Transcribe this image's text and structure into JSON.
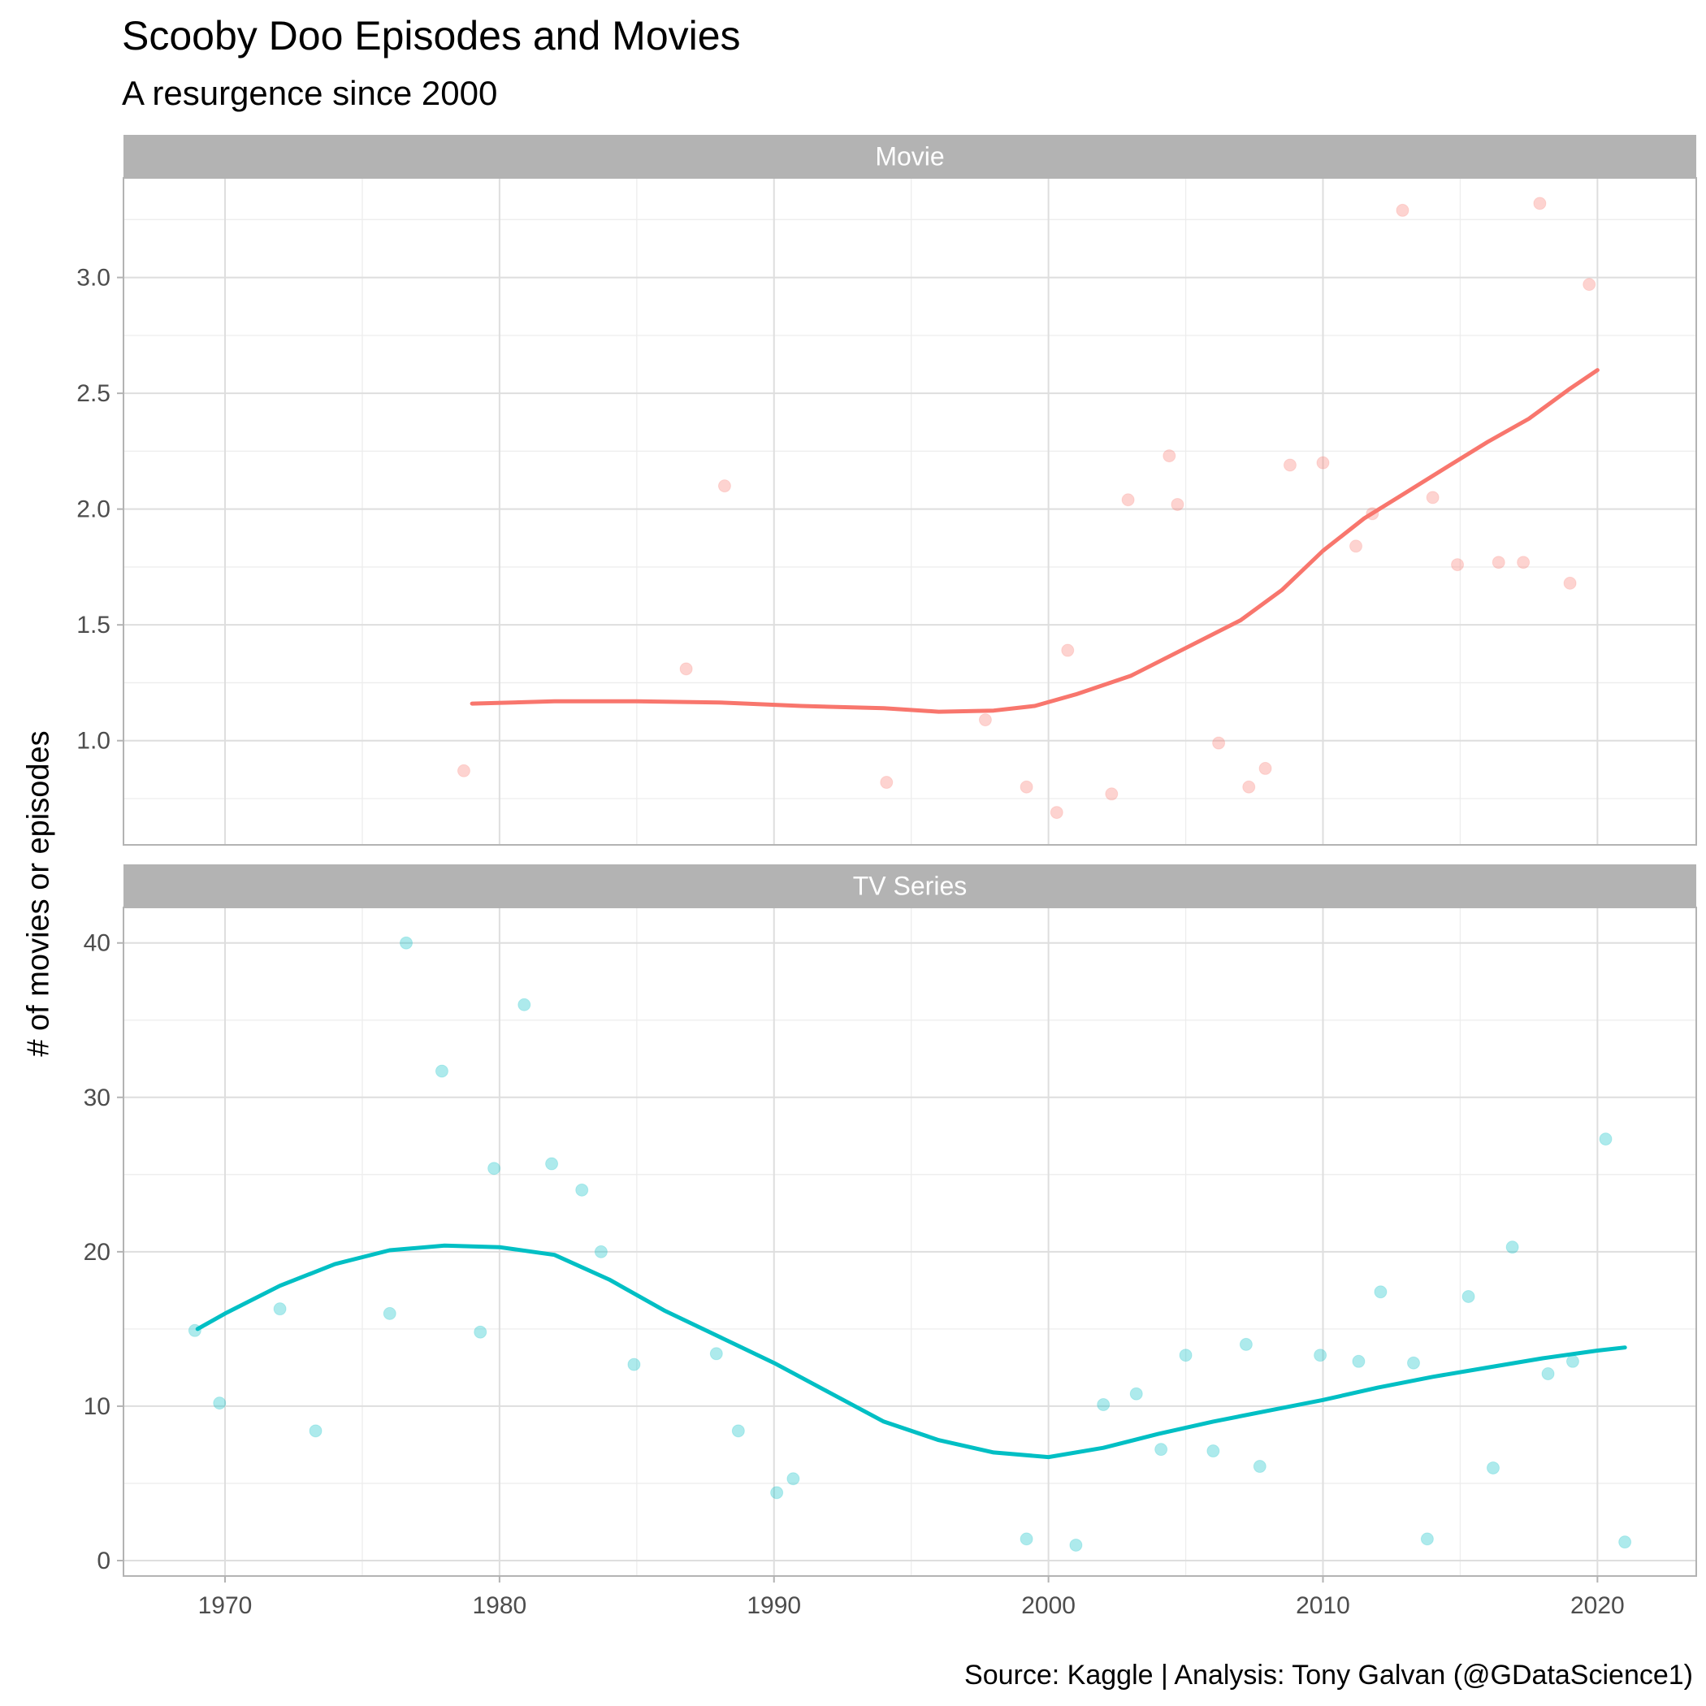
{
  "chart_data": {
    "type": "scatter",
    "title": "Scooby Doo Episodes and Movies",
    "subtitle": "A resurgence since 2000",
    "ylabel": "# of movies or episodes",
    "xlabel": "",
    "caption": "Source: Kaggle  |  Analysis: Tony Galvan (@GDataScience1)",
    "x_ticks": [
      1970,
      1980,
      1990,
      2000,
      2010,
      2020
    ],
    "xlim": [
      1966.3,
      2023.6
    ],
    "grid": true,
    "legend": "none",
    "facets": [
      {
        "name": "Movie",
        "color": "#F8766D",
        "ylim": [
          0.55,
          3.43
        ],
        "y_ticks": [
          1.0,
          1.5,
          2.0,
          2.5,
          3.0
        ],
        "y_tick_labels": [
          "1.0",
          "1.5",
          "2.0",
          "2.5",
          "3.0"
        ],
        "points": [
          [
            1978.7,
            0.87
          ],
          [
            1986.8,
            1.31
          ],
          [
            1988.2,
            2.1
          ],
          [
            1994.1,
            0.82
          ],
          [
            1997.7,
            1.09
          ],
          [
            1999.2,
            0.8
          ],
          [
            2000.3,
            0.69
          ],
          [
            2000.7,
            1.39
          ],
          [
            2002.3,
            0.77
          ],
          [
            2002.9,
            2.04
          ],
          [
            2004.4,
            2.23
          ],
          [
            2004.7,
            2.02
          ],
          [
            2006.2,
            0.99
          ],
          [
            2007.3,
            0.8
          ],
          [
            2007.9,
            0.88
          ],
          [
            2008.8,
            2.19
          ],
          [
            2010.0,
            2.2
          ],
          [
            2011.2,
            1.84
          ],
          [
            2011.8,
            1.98
          ],
          [
            2012.9,
            3.29
          ],
          [
            2014.0,
            2.05
          ],
          [
            2014.9,
            1.76
          ],
          [
            2016.4,
            1.77
          ],
          [
            2017.3,
            1.77
          ],
          [
            2017.9,
            3.32
          ],
          [
            2019.0,
            1.68
          ],
          [
            2019.7,
            2.97
          ]
        ],
        "trend": [
          [
            1979.0,
            1.16
          ],
          [
            1982.0,
            1.17
          ],
          [
            1985.0,
            1.17
          ],
          [
            1988.0,
            1.165
          ],
          [
            1991.0,
            1.15
          ],
          [
            1994.0,
            1.14
          ],
          [
            1996.0,
            1.125
          ],
          [
            1998.0,
            1.13
          ],
          [
            1999.5,
            1.15
          ],
          [
            2001.0,
            1.2
          ],
          [
            2003.0,
            1.28
          ],
          [
            2005.0,
            1.4
          ],
          [
            2007.0,
            1.52
          ],
          [
            2008.5,
            1.65
          ],
          [
            2010.0,
            1.82
          ],
          [
            2011.5,
            1.96
          ],
          [
            2013.0,
            2.07
          ],
          [
            2014.5,
            2.18
          ],
          [
            2016.0,
            2.29
          ],
          [
            2017.5,
            2.39
          ],
          [
            2019.0,
            2.52
          ],
          [
            2020.0,
            2.6
          ]
        ]
      },
      {
        "name": "TV Series",
        "color": "#00BFC4",
        "ylim": [
          -1.0,
          42.3
        ],
        "y_ticks": [
          0,
          10,
          20,
          30,
          40
        ],
        "y_tick_labels": [
          "0",
          "10",
          "20",
          "30",
          "40"
        ],
        "points": [
          [
            1968.9,
            14.9
          ],
          [
            1969.8,
            10.2
          ],
          [
            1972.0,
            16.3
          ],
          [
            1973.3,
            8.4
          ],
          [
            1976.0,
            16.0
          ],
          [
            1976.6,
            40.0
          ],
          [
            1977.9,
            31.7
          ],
          [
            1979.3,
            14.8
          ],
          [
            1979.8,
            25.4
          ],
          [
            1980.9,
            36.0
          ],
          [
            1981.9,
            25.7
          ],
          [
            1983.0,
            24.0
          ],
          [
            1983.7,
            20.0
          ],
          [
            1984.9,
            12.7
          ],
          [
            1987.9,
            13.4
          ],
          [
            1988.7,
            8.4
          ],
          [
            1990.1,
            4.4
          ],
          [
            1990.7,
            5.3
          ],
          [
            1999.2,
            1.4
          ],
          [
            2001.0,
            1.0
          ],
          [
            2002.0,
            10.1
          ],
          [
            2003.2,
            10.8
          ],
          [
            2004.1,
            7.2
          ],
          [
            2005.0,
            13.3
          ],
          [
            2006.0,
            7.1
          ],
          [
            2007.2,
            14.0
          ],
          [
            2007.7,
            6.1
          ],
          [
            2009.9,
            13.3
          ],
          [
            2011.3,
            12.9
          ],
          [
            2012.1,
            17.4
          ],
          [
            2013.3,
            12.8
          ],
          [
            2013.8,
            1.4
          ],
          [
            2015.3,
            17.1
          ],
          [
            2016.2,
            6.0
          ],
          [
            2016.9,
            20.3
          ],
          [
            2018.2,
            12.1
          ],
          [
            2019.1,
            12.9
          ],
          [
            2020.3,
            27.3
          ],
          [
            2021.0,
            1.2
          ]
        ],
        "trend": [
          [
            1969.0,
            15.0
          ],
          [
            1970.0,
            16.0
          ],
          [
            1972.0,
            17.8
          ],
          [
            1974.0,
            19.2
          ],
          [
            1976.0,
            20.1
          ],
          [
            1978.0,
            20.4
          ],
          [
            1980.0,
            20.3
          ],
          [
            1982.0,
            19.8
          ],
          [
            1984.0,
            18.2
          ],
          [
            1986.0,
            16.2
          ],
          [
            1988.0,
            14.5
          ],
          [
            1990.0,
            12.8
          ],
          [
            1992.0,
            10.9
          ],
          [
            1994.0,
            9.0
          ],
          [
            1996.0,
            7.8
          ],
          [
            1998.0,
            7.0
          ],
          [
            2000.0,
            6.7
          ],
          [
            2002.0,
            7.3
          ],
          [
            2004.0,
            8.2
          ],
          [
            2006.0,
            9.0
          ],
          [
            2008.0,
            9.7
          ],
          [
            2010.0,
            10.4
          ],
          [
            2012.0,
            11.2
          ],
          [
            2014.0,
            11.9
          ],
          [
            2016.0,
            12.5
          ],
          [
            2018.0,
            13.1
          ],
          [
            2020.0,
            13.6
          ],
          [
            2021.0,
            13.8
          ]
        ]
      }
    ]
  }
}
